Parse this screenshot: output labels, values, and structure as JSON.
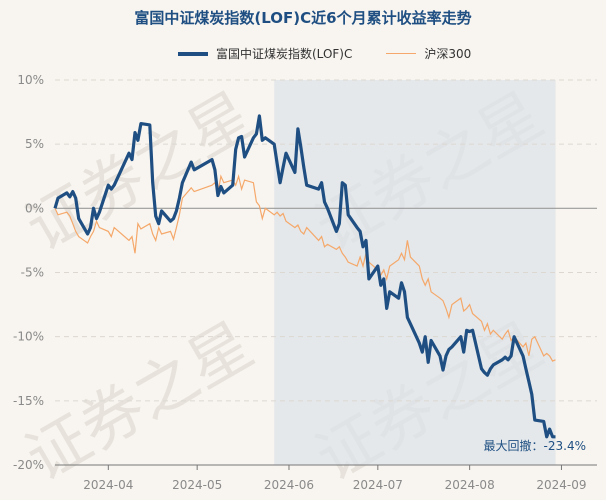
{
  "chart_data": {
    "type": "line",
    "title": "富国中证煤炭指数(LOF)C近6个月累计收益率走势",
    "ylim": [
      -20,
      10
    ],
    "yticks": [
      10,
      5,
      0,
      -5,
      -10,
      -15,
      -20
    ],
    "ytick_labels": [
      "10%",
      "5%",
      "0%",
      "-5%",
      "-10%",
      "-15%",
      "-20%"
    ],
    "xticks": [
      "2024-04",
      "2024-05",
      "2024-06",
      "2024-07",
      "2024-08",
      "2024-09"
    ],
    "xlim": [
      "2024-03-14",
      "2024-09-13"
    ],
    "grid": true,
    "legend_position": "top",
    "max_drawdown_label": "最大回撤：-23.4%",
    "max_drawdown_start": "2024-05-27",
    "series": [
      {
        "name": "富国中证煤炭指数(LOF)C",
        "color": "#1f4f82",
        "points": [
          [
            "2024-03-14",
            0
          ],
          [
            "2024-03-15",
            0.8
          ],
          [
            "2024-03-18",
            1.2
          ],
          [
            "2024-03-19",
            0.9
          ],
          [
            "2024-03-20",
            1.3
          ],
          [
            "2024-03-21",
            0.8
          ],
          [
            "2024-03-22",
            -0.8
          ],
          [
            "2024-03-25",
            -2.0
          ],
          [
            "2024-03-26",
            -1.5
          ],
          [
            "2024-03-27",
            0
          ],
          [
            "2024-03-28",
            -0.8
          ],
          [
            "2024-03-29",
            -0.3
          ],
          [
            "2024-04-01",
            1.8
          ],
          [
            "2024-04-02",
            1.5
          ],
          [
            "2024-04-03",
            1.8
          ],
          [
            "2024-04-08",
            4.3
          ],
          [
            "2024-04-09",
            3.8
          ],
          [
            "2024-04-10",
            5.9
          ],
          [
            "2024-04-11",
            5.3
          ],
          [
            "2024-04-12",
            6.6
          ],
          [
            "2024-04-15",
            6.5
          ],
          [
            "2024-04-16",
            2.0
          ],
          [
            "2024-04-17",
            -0.6
          ],
          [
            "2024-04-18",
            -1.2
          ],
          [
            "2024-04-19",
            -0.2
          ],
          [
            "2024-04-22",
            -1.0
          ],
          [
            "2024-04-23",
            -0.8
          ],
          [
            "2024-04-24",
            -0.2
          ],
          [
            "2024-04-25",
            0.8
          ],
          [
            "2024-04-26",
            2.0
          ],
          [
            "2024-04-29",
            3.6
          ],
          [
            "2024-04-30",
            3.0
          ],
          [
            "2024-05-06",
            3.8
          ],
          [
            "2024-05-07",
            3.0
          ],
          [
            "2024-05-08",
            1.0
          ],
          [
            "2024-05-09",
            1.7
          ],
          [
            "2024-05-10",
            1.2
          ],
          [
            "2024-05-13",
            1.8
          ],
          [
            "2024-05-14",
            4.6
          ],
          [
            "2024-05-15",
            5.5
          ],
          [
            "2024-05-16",
            5.6
          ],
          [
            "2024-05-17",
            4.0
          ],
          [
            "2024-05-20",
            5.5
          ],
          [
            "2024-05-21",
            5.8
          ],
          [
            "2024-05-22",
            7.2
          ],
          [
            "2024-05-23",
            5.3
          ],
          [
            "2024-05-24",
            5.5
          ],
          [
            "2024-05-27",
            5.0
          ],
          [
            "2024-05-28",
            3.5
          ],
          [
            "2024-05-29",
            2.0
          ],
          [
            "2024-05-30",
            3.2
          ],
          [
            "2024-05-31",
            4.3
          ],
          [
            "2024-06-03",
            2.8
          ],
          [
            "2024-06-04",
            6.2
          ],
          [
            "2024-06-05",
            4.8
          ],
          [
            "2024-06-06",
            3.2
          ],
          [
            "2024-06-07",
            1.8
          ],
          [
            "2024-06-11",
            1.5
          ],
          [
            "2024-06-12",
            2.0
          ],
          [
            "2024-06-13",
            0.5
          ],
          [
            "2024-06-14",
            0
          ],
          [
            "2024-06-17",
            -1.8
          ],
          [
            "2024-06-18",
            -1.2
          ],
          [
            "2024-06-19",
            2.0
          ],
          [
            "2024-06-20",
            1.8
          ],
          [
            "2024-06-21",
            -0.5
          ],
          [
            "2024-06-24",
            -1.5
          ],
          [
            "2024-06-25",
            -1.8
          ],
          [
            "2024-06-26",
            -3.0
          ],
          [
            "2024-06-27",
            -2.5
          ],
          [
            "2024-06-28",
            -5.5
          ],
          [
            "2024-07-01",
            -4.5
          ],
          [
            "2024-07-02",
            -6.0
          ],
          [
            "2024-07-03",
            -5.5
          ],
          [
            "2024-07-04",
            -7.8
          ],
          [
            "2024-07-05",
            -6.5
          ],
          [
            "2024-07-08",
            -7.0
          ],
          [
            "2024-07-09",
            -5.8
          ],
          [
            "2024-07-10",
            -6.5
          ],
          [
            "2024-07-11",
            -8.5
          ],
          [
            "2024-07-12",
            -9.0
          ],
          [
            "2024-07-15",
            -10.5
          ],
          [
            "2024-07-16",
            -11.2
          ],
          [
            "2024-07-17",
            -10.0
          ],
          [
            "2024-07-18",
            -12.0
          ],
          [
            "2024-07-19",
            -10.3
          ],
          [
            "2024-07-22",
            -11.5
          ],
          [
            "2024-07-23",
            -12.6
          ],
          [
            "2024-07-24",
            -11.5
          ],
          [
            "2024-07-25",
            -11.0
          ],
          [
            "2024-07-26",
            -10.8
          ],
          [
            "2024-07-29",
            -10.0
          ],
          [
            "2024-07-30",
            -11.2
          ],
          [
            "2024-07-31",
            -9.5
          ],
          [
            "2024-08-01",
            -9.6
          ],
          [
            "2024-08-02",
            -9.5
          ],
          [
            "2024-08-05",
            -12.5
          ],
          [
            "2024-08-06",
            -12.8
          ],
          [
            "2024-08-07",
            -13.0
          ],
          [
            "2024-08-08",
            -12.5
          ],
          [
            "2024-08-09",
            -12.2
          ],
          [
            "2024-08-12",
            -11.8
          ],
          [
            "2024-08-13",
            -11.6
          ],
          [
            "2024-08-14",
            -11.8
          ],
          [
            "2024-08-15",
            -11.5
          ],
          [
            "2024-08-16",
            -10.0
          ],
          [
            "2024-08-19",
            -11.5
          ],
          [
            "2024-08-20",
            -12.5
          ],
          [
            "2024-08-21",
            -13.5
          ],
          [
            "2024-08-22",
            -14.5
          ],
          [
            "2024-08-23",
            -16.5
          ],
          [
            "2024-08-26",
            -16.6
          ],
          [
            "2024-08-27",
            -17.8
          ],
          [
            "2024-08-28",
            -17.2
          ],
          [
            "2024-08-29",
            -17.8
          ],
          [
            "2024-08-30",
            -17.8
          ]
        ]
      },
      {
        "name": "沪深300",
        "color": "#f5a86a",
        "points": [
          [
            "2024-03-14",
            0
          ],
          [
            "2024-03-15",
            -0.5
          ],
          [
            "2024-03-18",
            -0.3
          ],
          [
            "2024-03-19",
            -0.6
          ],
          [
            "2024-03-20",
            -1.2
          ],
          [
            "2024-03-21",
            -1.8
          ],
          [
            "2024-03-22",
            -2.2
          ],
          [
            "2024-03-25",
            -2.7
          ],
          [
            "2024-03-26",
            -2.2
          ],
          [
            "2024-03-27",
            -1.8
          ],
          [
            "2024-03-28",
            -1.0
          ],
          [
            "2024-03-29",
            -1.5
          ],
          [
            "2024-04-01",
            -1.8
          ],
          [
            "2024-04-02",
            -2.2
          ],
          [
            "2024-04-03",
            -1.5
          ],
          [
            "2024-04-08",
            -2.5
          ],
          [
            "2024-04-09",
            -2.2
          ],
          [
            "2024-04-10",
            -3.5
          ],
          [
            "2024-04-11",
            -1.2
          ],
          [
            "2024-04-12",
            -1.6
          ],
          [
            "2024-04-15",
            -1.2
          ],
          [
            "2024-04-16",
            -2.0
          ],
          [
            "2024-04-17",
            -2.5
          ],
          [
            "2024-04-18",
            -1.5
          ],
          [
            "2024-04-19",
            -2.0
          ],
          [
            "2024-04-22",
            -1.8
          ],
          [
            "2024-04-23",
            -2.4
          ],
          [
            "2024-04-24",
            -1.5
          ],
          [
            "2024-04-25",
            -0.5
          ],
          [
            "2024-04-26",
            0.8
          ],
          [
            "2024-04-29",
            1.6
          ],
          [
            "2024-04-30",
            1.3
          ],
          [
            "2024-05-06",
            1.8
          ],
          [
            "2024-05-07",
            2.0
          ],
          [
            "2024-05-08",
            1.2
          ],
          [
            "2024-05-09",
            2.5
          ],
          [
            "2024-05-10",
            2.0
          ],
          [
            "2024-05-13",
            2.2
          ],
          [
            "2024-05-14",
            1.8
          ],
          [
            "2024-05-15",
            2.5
          ],
          [
            "2024-05-16",
            1.5
          ],
          [
            "2024-05-17",
            2.2
          ],
          [
            "2024-05-20",
            2.0
          ],
          [
            "2024-05-21",
            0.5
          ],
          [
            "2024-05-22",
            0.2
          ],
          [
            "2024-05-23",
            -0.8
          ],
          [
            "2024-05-24",
            0
          ],
          [
            "2024-05-27",
            -0.5
          ],
          [
            "2024-05-28",
            -0.3
          ],
          [
            "2024-05-29",
            -0.6
          ],
          [
            "2024-05-30",
            -0.4
          ],
          [
            "2024-05-31",
            -1.0
          ],
          [
            "2024-06-03",
            -1.5
          ],
          [
            "2024-06-04",
            -1.3
          ],
          [
            "2024-06-05",
            -1.8
          ],
          [
            "2024-06-06",
            -2.0
          ],
          [
            "2024-06-07",
            -1.5
          ],
          [
            "2024-06-11",
            -2.5
          ],
          [
            "2024-06-12",
            -2.2
          ],
          [
            "2024-06-13",
            -3.0
          ],
          [
            "2024-06-14",
            -2.8
          ],
          [
            "2024-06-17",
            -3.2
          ],
          [
            "2024-06-18",
            -3.0
          ],
          [
            "2024-06-19",
            -3.5
          ],
          [
            "2024-06-20",
            -3.8
          ],
          [
            "2024-06-21",
            -4.2
          ],
          [
            "2024-06-24",
            -4.5
          ],
          [
            "2024-06-25",
            -3.8
          ],
          [
            "2024-06-26",
            -4.5
          ],
          [
            "2024-06-27",
            -3.5
          ],
          [
            "2024-06-28",
            -4.2
          ],
          [
            "2024-07-01",
            -4.8
          ],
          [
            "2024-07-02",
            -5.2
          ],
          [
            "2024-07-03",
            -4.8
          ],
          [
            "2024-07-04",
            -5.5
          ],
          [
            "2024-07-05",
            -4.5
          ],
          [
            "2024-07-08",
            -4.0
          ],
          [
            "2024-07-09",
            -3.5
          ],
          [
            "2024-07-10",
            -4.0
          ],
          [
            "2024-07-11",
            -2.5
          ],
          [
            "2024-07-12",
            -3.8
          ],
          [
            "2024-07-15",
            -4.5
          ],
          [
            "2024-07-16",
            -5.5
          ],
          [
            "2024-07-17",
            -6.0
          ],
          [
            "2024-07-18",
            -5.5
          ],
          [
            "2024-07-19",
            -6.5
          ],
          [
            "2024-07-22",
            -7.0
          ],
          [
            "2024-07-23",
            -7.2
          ],
          [
            "2024-07-24",
            -7.8
          ],
          [
            "2024-07-25",
            -8.5
          ],
          [
            "2024-07-26",
            -7.5
          ],
          [
            "2024-07-29",
            -7.0
          ],
          [
            "2024-07-30",
            -8.0
          ],
          [
            "2024-07-31",
            -7.8
          ],
          [
            "2024-08-01",
            -7.5
          ],
          [
            "2024-08-02",
            -8.2
          ],
          [
            "2024-08-05",
            -8.8
          ],
          [
            "2024-08-06",
            -9.5
          ],
          [
            "2024-08-07",
            -9.0
          ],
          [
            "2024-08-08",
            -9.8
          ],
          [
            "2024-08-09",
            -9.5
          ],
          [
            "2024-08-12",
            -10.2
          ],
          [
            "2024-08-13",
            -9.8
          ],
          [
            "2024-08-14",
            -9.5
          ],
          [
            "2024-08-15",
            -10.3
          ],
          [
            "2024-08-16",
            -10.0
          ],
          [
            "2024-08-19",
            -10.8
          ],
          [
            "2024-08-20",
            -10.5
          ],
          [
            "2024-08-21",
            -11.5
          ],
          [
            "2024-08-22",
            -10.2
          ],
          [
            "2024-08-23",
            -10.0
          ],
          [
            "2024-08-26",
            -11.5
          ],
          [
            "2024-08-27",
            -11.3
          ],
          [
            "2024-08-28",
            -11.5
          ],
          [
            "2024-08-29",
            -11.9
          ],
          [
            "2024-08-30",
            -11.8
          ]
        ]
      }
    ]
  },
  "watermark_text": "证券之星"
}
